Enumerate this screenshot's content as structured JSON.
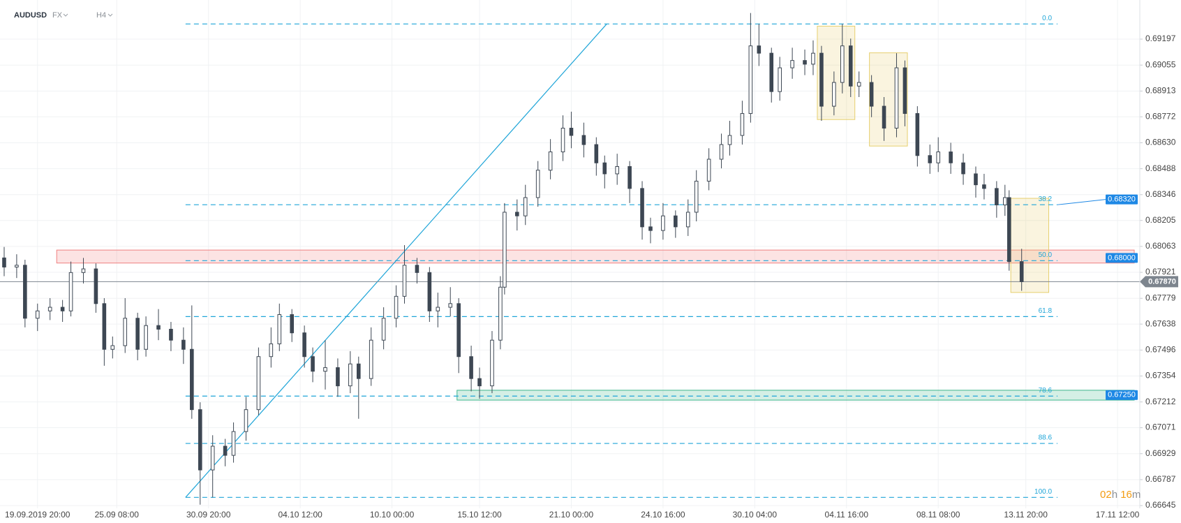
{
  "header": {
    "symbol": "AUDUSD",
    "market": "FX",
    "timeframe": "H4"
  },
  "chart_data": {
    "type": "candlestick",
    "x": [
      1,
      4,
      6,
      9,
      12,
      15,
      17,
      20,
      23,
      25,
      27,
      30,
      33,
      35,
      38,
      41,
      44,
      46,
      48,
      51,
      54,
      56,
      59,
      62,
      65,
      67,
      70,
      73,
      75,
      78,
      81,
      84,
      86,
      89,
      92,
      95,
      97,
      100,
      103,
      105,
      108,
      110,
      113,
      115,
      118,
      120,
      121,
      124,
      126,
      129,
      132,
      135,
      137,
      140,
      143,
      145,
      148,
      151,
      154,
      156,
      159,
      162,
      165,
      167,
      170,
      173,
      175,
      178,
      180,
      182,
      185,
      187,
      190,
      193,
      195,
      197,
      200,
      202,
      204,
      206,
      209,
      212,
      215,
      217,
      220,
      223,
      225,
      228,
      231,
      234,
      236,
      239,
      241,
      242,
      245
    ],
    "open": [
      0.68,
      0.6795,
      0.6796,
      0.6767,
      0.6771,
      0.6773,
      0.6771,
      0.6792,
      0.6794,
      0.6775,
      0.675,
      0.6752,
      0.6767,
      0.675,
      0.6763,
      0.6761,
      0.6755,
      0.675,
      0.6717,
      0.6684,
      0.6697,
      0.6692,
      0.6705,
      0.6717,
      0.6746,
      0.6753,
      0.6769,
      0.6759,
      0.6746,
      0.6738,
      0.674,
      0.673,
      0.6742,
      0.6734,
      0.6755,
      0.6767,
      0.6779,
      0.6796,
      0.6792,
      0.6771,
      0.6773,
      0.6775,
      0.6746,
      0.6734,
      0.673,
      0.6755,
      0.6784,
      0.6825,
      0.6823,
      0.6833,
      0.6848,
      0.6858,
      0.6871,
      0.6867,
      0.6862,
      0.6852,
      0.6846,
      0.685,
      0.6838,
      0.6817,
      0.6815,
      0.6823,
      0.6817,
      0.6825,
      0.6842,
      0.6854,
      0.6862,
      0.6867,
      0.6879,
      0.6916,
      0.6912,
      0.6891,
      0.6904,
      0.6908,
      0.6906,
      0.6912,
      0.6883,
      0.6896,
      0.6916,
      0.6894,
      0.6896,
      0.6883,
      0.6871,
      0.6904,
      0.6879,
      0.6856,
      0.6852,
      0.6858,
      0.6852,
      0.6846,
      0.684,
      0.6838,
      0.6829,
      0.6833,
      0.6798
    ],
    "high": [
      0.6806,
      0.6802,
      0.6799,
      0.6775,
      0.6778,
      0.6777,
      0.6798,
      0.68,
      0.6797,
      0.6778,
      0.6757,
      0.6778,
      0.677,
      0.6768,
      0.6772,
      0.6765,
      0.6762,
      0.6774,
      0.6721,
      0.6703,
      0.6701,
      0.671,
      0.6724,
      0.6751,
      0.6762,
      0.6775,
      0.6772,
      0.6763,
      0.6751,
      0.6755,
      0.6745,
      0.6749,
      0.6746,
      0.6762,
      0.6773,
      0.6785,
      0.6807,
      0.68,
      0.6795,
      0.6781,
      0.6784,
      0.6778,
      0.6752,
      0.674,
      0.676,
      0.679,
      0.683,
      0.6832,
      0.684,
      0.6853,
      0.6865,
      0.6878,
      0.688,
      0.6874,
      0.6866,
      0.6856,
      0.6857,
      0.6853,
      0.6842,
      0.6822,
      0.683,
      0.6826,
      0.6832,
      0.6848,
      0.686,
      0.6868,
      0.6875,
      0.6886,
      0.6934,
      0.6928,
      0.6915,
      0.691,
      0.6915,
      0.6914,
      0.6919,
      0.6916,
      0.6902,
      0.6928,
      0.692,
      0.6902,
      0.69,
      0.6888,
      0.6912,
      0.6908,
      0.6883,
      0.6862,
      0.6866,
      0.6863,
      0.6857,
      0.685,
      0.6846,
      0.6842,
      0.684,
      0.6837,
      0.6805
    ],
    "low": [
      0.679,
      0.6789,
      0.6762,
      0.676,
      0.6766,
      0.6765,
      0.6768,
      0.6786,
      0.677,
      0.6741,
      0.6745,
      0.6748,
      0.6744,
      0.6746,
      0.6755,
      0.6749,
      0.6742,
      0.6712,
      0.6665,
      0.6669,
      0.6686,
      0.6688,
      0.67,
      0.6714,
      0.674,
      0.6749,
      0.6754,
      0.674,
      0.6732,
      0.6728,
      0.6724,
      0.6726,
      0.6712,
      0.673,
      0.675,
      0.6762,
      0.6775,
      0.6786,
      0.6765,
      0.6762,
      0.6768,
      0.6737,
      0.6727,
      0.6723,
      0.6726,
      0.675,
      0.678,
      0.6815,
      0.6818,
      0.6828,
      0.6843,
      0.6853,
      0.686,
      0.6855,
      0.6845,
      0.6838,
      0.684,
      0.683,
      0.681,
      0.6808,
      0.681,
      0.6811,
      0.6812,
      0.682,
      0.6837,
      0.6849,
      0.6856,
      0.6862,
      0.6874,
      0.6905,
      0.6885,
      0.6886,
      0.6898,
      0.69,
      0.69,
      0.6875,
      0.6878,
      0.689,
      0.6888,
      0.6888,
      0.6877,
      0.6864,
      0.6866,
      0.6872,
      0.685,
      0.6846,
      0.6847,
      0.6846,
      0.684,
      0.6833,
      0.6832,
      0.6822,
      0.6823,
      0.6793,
      0.6782
    ],
    "close": [
      0.6795,
      0.6796,
      0.6767,
      0.6771,
      0.6773,
      0.6771,
      0.6792,
      0.6794,
      0.6775,
      0.675,
      0.6752,
      0.6767,
      0.675,
      0.6763,
      0.6761,
      0.6755,
      0.675,
      0.6717,
      0.6684,
      0.6697,
      0.6692,
      0.6705,
      0.6717,
      0.6746,
      0.6753,
      0.6769,
      0.6759,
      0.6746,
      0.6738,
      0.674,
      0.673,
      0.6742,
      0.6734,
      0.6755,
      0.6767,
      0.6779,
      0.6796,
      0.6792,
      0.6771,
      0.6773,
      0.6775,
      0.6746,
      0.6734,
      0.673,
      0.6755,
      0.6784,
      0.6825,
      0.6823,
      0.6833,
      0.6848,
      0.6858,
      0.6871,
      0.6867,
      0.6862,
      0.6852,
      0.6846,
      0.685,
      0.6838,
      0.6817,
      0.6815,
      0.6823,
      0.6817,
      0.6825,
      0.6842,
      0.6854,
      0.6862,
      0.6867,
      0.6879,
      0.6916,
      0.6912,
      0.6891,
      0.6904,
      0.6908,
      0.6906,
      0.6912,
      0.6883,
      0.6896,
      0.6916,
      0.6894,
      0.6896,
      0.6883,
      0.6871,
      0.6904,
      0.6879,
      0.6856,
      0.6852,
      0.6858,
      0.6852,
      0.6846,
      0.684,
      0.6838,
      0.6829,
      0.6833,
      0.6798,
      0.6787
    ],
    "up_color": "#ffffff",
    "down_color": "#3d4753",
    "xlim": [
      0,
      272
    ],
    "xticks": [
      {
        "value": 9,
        "label": "19.09.2019 20:00"
      },
      {
        "value": 28,
        "label": "25.09 08:00"
      },
      {
        "value": 50,
        "label": "30.09 20:00"
      },
      {
        "value": 72,
        "label": "04.10 12:00"
      },
      {
        "value": 94,
        "label": "10.10 00:00"
      },
      {
        "value": 115,
        "label": "15.10 12:00"
      },
      {
        "value": 137,
        "label": "21.10 00:00"
      },
      {
        "value": 159,
        "label": "24.10 16:00"
      },
      {
        "value": 181,
        "label": "30.10 04:00"
      },
      {
        "value": 203,
        "label": "04.11 16:00"
      },
      {
        "value": 225,
        "label": "08.11 08:00"
      },
      {
        "value": 246,
        "label": "13.11 20:00"
      },
      {
        "value": 268,
        "label": "17.11 12:00"
      }
    ],
    "ylim": [
      0.6663,
      0.69411
    ],
    "yticks": [
      0.69197,
      0.69055,
      0.68913,
      0.68772,
      {
        "value": 0.6863,
        "label": "0.68630"
      },
      0.68488,
      0.68346,
      0.68205,
      0.68063,
      0.67921,
      0.67779,
      0.67638,
      0.67496,
      0.67354,
      0.67212,
      0.67071,
      0.66929,
      0.66787,
      0.66645
    ],
    "grid": true,
    "fibonacci": {
      "x": [
        44.5,
        253.6
      ],
      "color": "#1fa5d8",
      "levels": [
        {
          "label": "0.0",
          "value": 0.6928
        },
        {
          "label": "38.2",
          "value": 0.68291
        },
        {
          "label": "50.0",
          "value": 0.67985
        },
        {
          "label": "61.8",
          "value": 0.67679
        },
        {
          "label": "78.6",
          "value": 0.67244
        },
        {
          "label": "88.6",
          "value": 0.66985
        },
        {
          "label": "100.0",
          "value": 0.6669
        }
      ]
    },
    "trendline": {
      "x": [
        44.5,
        145.5
      ],
      "y": [
        0.6669,
        0.6928
      ],
      "color": "#1fa5d8"
    },
    "zones": [
      {
        "x": [
          13.6,
          272
        ],
        "y": [
          0.68043,
          0.67972
        ],
        "color": "#f08080"
      },
      {
        "x": [
          109.6,
          272
        ],
        "y": [
          0.67276,
          0.67222
        ],
        "color": "#3cb58a"
      },
      {
        "x": [
          196,
          205
        ],
        "y": [
          0.69268,
          0.68757
        ],
        "color": "#e6cf6e"
      },
      {
        "x": [
          208.5,
          217.6
        ],
        "y": [
          0.69122,
          0.68612
        ],
        "color": "#e6cf6e"
      },
      {
        "x": [
          242.4,
          251.5
        ],
        "y": [
          0.68326,
          0.67811
        ],
        "color": "#e6cf6e"
      }
    ],
    "price_tags": [
      {
        "value": 0.6832,
        "label": "0.68320",
        "color": "#1e88e5"
      },
      {
        "value": 0.68,
        "label": "0.68000",
        "color": "#1e88e5"
      },
      {
        "value": 0.6725,
        "label": "0.67250",
        "color": "#1e88e5"
      }
    ],
    "last_price": {
      "value": 0.6787,
      "label": "0.67870",
      "color": "#7d858e"
    },
    "countdown": {
      "hours": "02",
      "h": "h",
      "minutes": "16",
      "m": "m"
    }
  }
}
